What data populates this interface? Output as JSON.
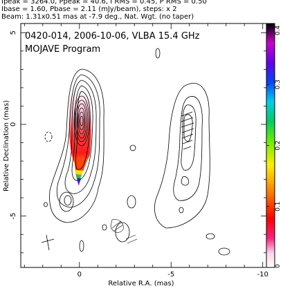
{
  "header": {
    "line1": "Ipeak = 3264.0, Ppeak = 40.6, I RMS = 0.45, P RMS = 0.50",
    "line2": "Ibase = 1.60, Pbase = 2.11 (mJy/beam), steps: x 2",
    "line3": "Beam: 1.31x0.51 mas at -7.9 deg., Nat. Wgt. (no taper)"
  },
  "plot": {
    "title": "0420-014, 2006-10-06, VLBA 15.4 GHz",
    "subtitle": "MOJAVE Program",
    "xlabel": "Relative R.A. (mas)",
    "ylabel": "Relative Declination (mas)",
    "x_ticks": [
      {
        "value": 0,
        "label": "0"
      },
      {
        "value": -5,
        "label": "-5"
      },
      {
        "value": -10,
        "label": "-10"
      }
    ],
    "y_ticks": [
      {
        "value": 5,
        "label": "5"
      },
      {
        "value": 0,
        "label": "0"
      },
      {
        "value": -5,
        "label": "-5"
      }
    ],
    "xlim": [
      3.2,
      -10.2
    ],
    "ylim": [
      -7.8,
      5.5
    ]
  },
  "colorbar": {
    "min": 0,
    "max": 0.4,
    "ticks": [
      {
        "value": 0,
        "label": "0"
      },
      {
        "value": 0.1,
        "label": "0.1"
      },
      {
        "value": 0.2,
        "label": "0.2"
      },
      {
        "value": 0.3,
        "label": "0.3"
      },
      {
        "value": 0.4,
        "label": "0.4"
      }
    ]
  }
}
